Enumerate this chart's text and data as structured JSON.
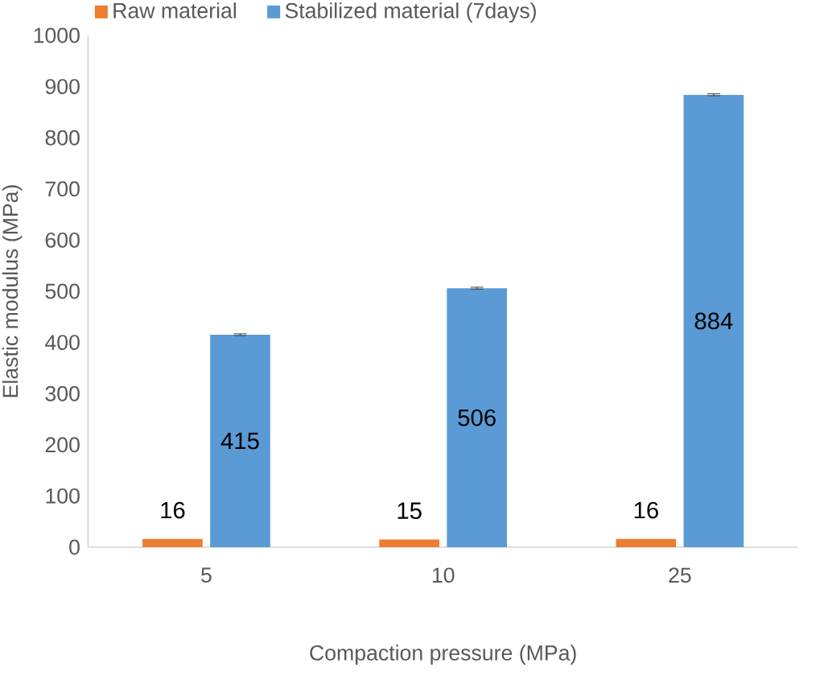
{
  "chart_data": {
    "type": "bar",
    "xlabel": "Compaction pressure (MPa)",
    "ylabel": "Elastic modulus (MPa)",
    "categories": [
      "5",
      "10",
      "25"
    ],
    "series": [
      {
        "name": "Raw material",
        "color": "#ed7d31",
        "values": [
          16,
          15,
          16
        ]
      },
      {
        "name": "Stabilized material (7days)",
        "color": "#5b9bd5",
        "values": [
          415,
          506,
          884
        ],
        "errors": [
          2,
          2,
          2
        ]
      }
    ],
    "ylim": [
      0,
      1000
    ],
    "yticks": [
      0,
      100,
      200,
      300,
      400,
      500,
      600,
      700,
      800,
      900,
      1000
    ],
    "legend": "top",
    "grid": false,
    "data_labels": true
  }
}
